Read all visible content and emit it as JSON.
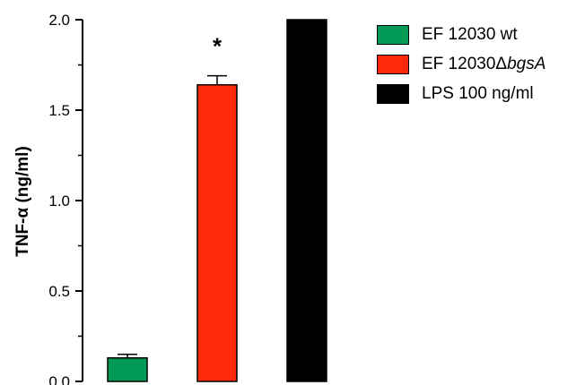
{
  "chart_data": {
    "type": "bar",
    "ylabel": "TNF-α (ng/ml)",
    "ylim": [
      0,
      2.0
    ],
    "yticks": [
      "0.0",
      "0.5",
      "1.0",
      "1.5",
      "2.0"
    ],
    "yticks_values": [
      0,
      0.5,
      1.0,
      1.5,
      2.0
    ],
    "categories": [
      "EF 12030 wt",
      "EF 12030ΔbgsA",
      "LPS 100 ng/ml"
    ],
    "values": [
      0.13,
      1.64,
      2.0
    ],
    "error": [
      0.02,
      0.05,
      0
    ],
    "colors": [
      "#009a55",
      "#ff2a0a",
      "#000000"
    ],
    "annotations": [
      {
        "category": "EF 12030ΔbgsA",
        "text": "*"
      }
    ]
  },
  "legend": {
    "items": [
      {
        "prefix": "EF 12030 wt",
        "italic": "",
        "color": "#009a55"
      },
      {
        "prefix": "EF 12030Δ",
        "italic": "bgsA",
        "color": "#ff2a0a"
      },
      {
        "prefix": "LPS 100 ng/ml",
        "italic": "",
        "color": "#000000"
      }
    ]
  }
}
